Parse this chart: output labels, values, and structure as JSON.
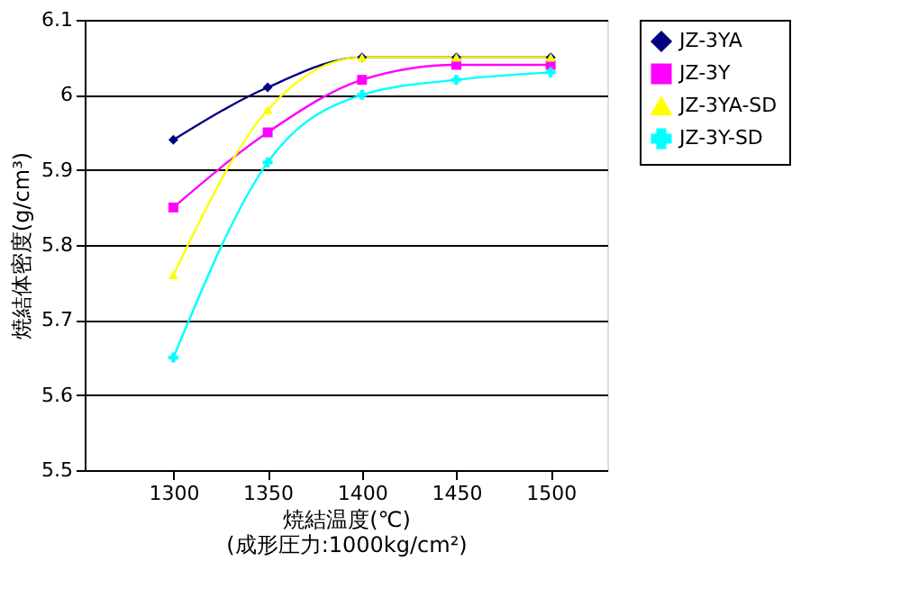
{
  "chart_data": {
    "type": "line",
    "xlabel": "焼結温度(℃)",
    "ylabel": "焼結体密度(g/cm³)",
    "annotations": [
      "(成形圧力:1000kg/cm²)"
    ],
    "x": [
      1300,
      1350,
      1400,
      1450,
      1500
    ],
    "xlim": [
      1253,
      1530
    ],
    "xticks": [
      1300,
      1350,
      1400,
      1450,
      1500
    ],
    "ylim": [
      5.5,
      6.1
    ],
    "yticks": [
      5.5,
      5.6,
      5.7,
      5.8,
      5.9,
      {
        "value": 6.0,
        "label": "6"
      },
      6.1
    ],
    "grid": "y",
    "legend": "right",
    "series": [
      {
        "name": "JZ-3YA",
        "color": "#000080",
        "marker": "diamond",
        "values": [
          5.94,
          6.01,
          6.05,
          6.05,
          6.05
        ]
      },
      {
        "name": "JZ-3Y",
        "color": "#ff00ff",
        "marker": "square",
        "values": [
          5.85,
          5.95,
          6.02,
          6.04,
          6.04
        ]
      },
      {
        "name": "JZ-3YA-SD",
        "color": "#ffff00",
        "marker": "triangle",
        "values": [
          5.76,
          5.98,
          6.05,
          6.05,
          6.05
        ]
      },
      {
        "name": "JZ-3Y-SD",
        "color": "#00ffff",
        "marker": "cross",
        "values": [
          5.65,
          5.91,
          6.0,
          6.02,
          6.03
        ]
      }
    ]
  }
}
